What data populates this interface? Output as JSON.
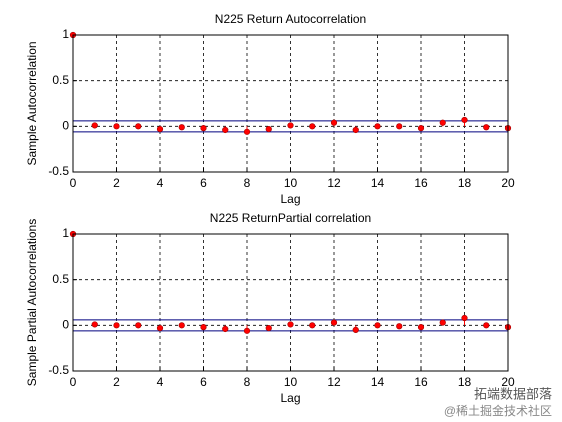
{
  "chart_data": [
    {
      "type": "stem",
      "title": "N225 Return Autocorrelation",
      "xlabel": "Lag",
      "ylabel": "Sample Autocorrelation",
      "x": [
        0,
        1,
        2,
        3,
        4,
        5,
        6,
        7,
        8,
        9,
        10,
        11,
        12,
        13,
        14,
        15,
        16,
        17,
        18,
        19,
        20
      ],
      "values": [
        1,
        0.01,
        0.0,
        0.0,
        -0.03,
        -0.01,
        -0.02,
        -0.04,
        -0.06,
        -0.03,
        0.01,
        0.0,
        0.04,
        -0.04,
        0.0,
        0.0,
        -0.02,
        0.04,
        0.07,
        -0.01,
        -0.02
      ],
      "color": "#ff0000",
      "bounds": [
        0.06,
        -0.06
      ],
      "bounds_color": "#00007f",
      "xlim": [
        0,
        20
      ],
      "xticks": [
        0,
        2,
        4,
        6,
        8,
        10,
        12,
        14,
        16,
        18,
        20
      ],
      "ylim": [
        -0.5,
        1
      ],
      "yticks": [
        -0.5,
        0,
        0.5,
        1
      ],
      "grid": true
    },
    {
      "type": "stem",
      "title": "N225 ReturnPartial correlation",
      "xlabel": "Lag",
      "ylabel": "Sample Partial Autocorrelations",
      "x": [
        0,
        1,
        2,
        3,
        4,
        5,
        6,
        7,
        8,
        9,
        10,
        11,
        12,
        13,
        14,
        15,
        16,
        17,
        18,
        19,
        20
      ],
      "values": [
        1,
        0.01,
        0.0,
        0.0,
        -0.03,
        0.0,
        -0.02,
        -0.04,
        -0.06,
        -0.03,
        0.01,
        0.0,
        0.03,
        -0.05,
        0.0,
        -0.01,
        -0.02,
        0.03,
        0.08,
        0.0,
        -0.02
      ],
      "color": "#ff0000",
      "bounds": [
        0.06,
        -0.06
      ],
      "bounds_color": "#00007f",
      "xlim": [
        0,
        20
      ],
      "xticks": [
        0,
        2,
        4,
        6,
        8,
        10,
        12,
        14,
        16,
        18,
        20
      ],
      "ylim": [
        -0.5,
        1
      ],
      "yticks": [
        -0.5,
        0,
        0.5,
        1
      ],
      "grid": true
    }
  ],
  "watermark": [
    "拓端数据部落",
    "@稀土掘金技术社区"
  ]
}
